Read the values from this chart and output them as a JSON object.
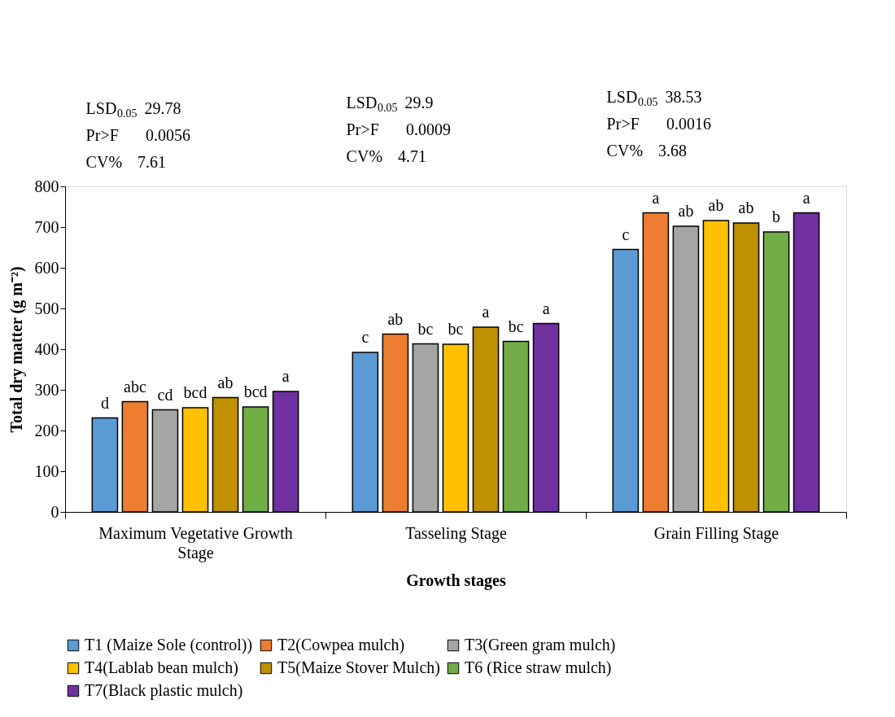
{
  "chart_data": {
    "type": "bar",
    "xlabel": "Growth stages",
    "ylabel": "Total dry matter (g m⁻²)",
    "categories": [
      "Maximum Vegetative Growth Stage",
      "Tasseling Stage",
      "Grain Filling Stage"
    ],
    "series": [
      {
        "name": "T1 (Maize Sole (control))",
        "color": "#5b9bd5",
        "values": [
          231,
          392,
          645
        ],
        "value_labels": [
          "d",
          "c",
          "c"
        ]
      },
      {
        "name": "T2(Cowpea  mulch)",
        "color": "#ed7d31",
        "values": [
          271,
          437,
          735
        ],
        "value_labels": [
          "abc",
          "ab",
          "a"
        ]
      },
      {
        "name": "T3(Green gram  mulch)",
        "color": "#a5a5a5",
        "values": [
          251,
          413,
          702
        ],
        "value_labels": [
          "cd",
          "bc",
          "ab"
        ]
      },
      {
        "name": "T4(Lablab bean  mulch)",
        "color": "#ffc000",
        "values": [
          256,
          412,
          716
        ],
        "value_labels": [
          "bcd",
          "bc",
          "ab"
        ]
      },
      {
        "name": "T5(Maize Stover Mulch)",
        "color": "#bf9000",
        "values": [
          281,
          454,
          710
        ],
        "value_labels": [
          "ab",
          "a",
          "ab"
        ]
      },
      {
        "name": "T6 (Rice straw mulch)",
        "color": "#70ad47",
        "values": [
          258,
          419,
          688
        ],
        "value_labels": [
          "bcd",
          "bc",
          "b"
        ]
      },
      {
        "name": "T7(Black plastic mulch)",
        "color": "#7030a0",
        "values": [
          296,
          463,
          735
        ],
        "value_labels": [
          "a",
          "a",
          "a"
        ]
      }
    ],
    "ylim": [
      0,
      800
    ],
    "yticks": [
      0,
      100,
      200,
      300,
      400,
      500,
      600,
      700,
      800
    ],
    "grid": false,
    "legend": "bottom",
    "annotations": [
      "LSD$_{0.05}$ 29.78",
      "Pr>F     0.0056",
      "CV%     7.61",
      "LSD$_{0.05}$ 29.9",
      "Pr>F     0.0009",
      "CV%     4.71",
      "LSD$_{0.05}$ 38.53",
      "Pr>F     0.0016",
      "CV%     3.68"
    ]
  }
}
